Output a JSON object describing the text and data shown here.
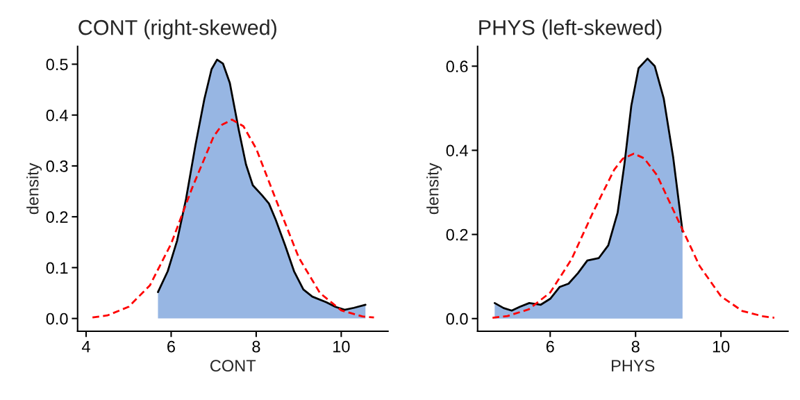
{
  "chart_data": [
    {
      "type": "area",
      "title": "CONT (right-skewed)",
      "xlabel": "CONT",
      "ylabel": "density",
      "grid": false,
      "legend": false,
      "xlim": [
        3.8,
        11.1
      ],
      "ylim": [
        -0.025,
        0.535
      ],
      "xticks": [
        4,
        6,
        8,
        10
      ],
      "yticks": [
        {
          "value": 0,
          "label": "0.0"
        },
        {
          "value": 0.1,
          "label": "0.1"
        },
        {
          "value": 0.2,
          "label": "0.2"
        },
        {
          "value": 0.3,
          "label": "0.3"
        },
        {
          "value": 0.4,
          "label": "0.4"
        },
        {
          "value": 0.5,
          "label": "0.5"
        }
      ],
      "series": [
        {
          "type": "area",
          "color": "#97b6e3",
          "x": [
            5.69,
            5.92,
            6.14,
            6.35,
            6.57,
            6.78,
            6.95,
            7.08,
            7.22,
            7.38,
            7.59,
            7.76,
            7.92,
            8.14,
            8.3,
            8.46,
            8.68,
            8.89,
            9.11,
            9.32,
            9.65,
            9.86,
            10.08,
            10.3,
            10.57
          ],
          "values": [
            0.052,
            0.093,
            0.153,
            0.235,
            0.34,
            0.431,
            0.49,
            0.509,
            0.501,
            0.463,
            0.371,
            0.303,
            0.262,
            0.242,
            0.226,
            0.194,
            0.144,
            0.093,
            0.057,
            0.043,
            0.032,
            0.023,
            0.017,
            0.021,
            0.027
          ]
        },
        {
          "type": "line",
          "color": "#ff0000",
          "line_style": "dashed",
          "x": [
            4.15,
            4.5,
            5.0,
            5.5,
            6.0,
            6.5,
            7.0,
            7.2,
            7.43,
            7.7,
            8.0,
            8.5,
            9.0,
            9.5,
            10.0,
            10.5,
            10.77
          ],
          "values": [
            0.002,
            0.006,
            0.023,
            0.065,
            0.147,
            0.258,
            0.358,
            0.381,
            0.391,
            0.378,
            0.334,
            0.226,
            0.12,
            0.05,
            0.016,
            0.004,
            0.002
          ]
        }
      ]
    },
    {
      "type": "area",
      "title": "PHYS (left-skewed)",
      "xlabel": "PHYS",
      "ylabel": "density",
      "grid": false,
      "legend": false,
      "xlim": [
        4.3,
        11.57
      ],
      "ylim": [
        -0.03,
        0.647
      ],
      "xticks": [
        6,
        8,
        10
      ],
      "yticks": [
        {
          "value": 0,
          "label": "0.0"
        },
        {
          "value": 0.2,
          "label": "0.2"
        },
        {
          "value": 0.4,
          "label": "0.4"
        },
        {
          "value": 0.6,
          "label": "0.6"
        }
      ],
      "series": [
        {
          "type": "area",
          "color": "#97b6e3",
          "x": [
            4.7,
            4.91,
            5.1,
            5.29,
            5.51,
            5.78,
            6.0,
            6.22,
            6.43,
            6.65,
            6.87,
            7.14,
            7.36,
            7.58,
            7.74,
            7.9,
            8.07,
            8.28,
            8.45,
            8.66,
            8.88,
            9.1
          ],
          "values": [
            0.037,
            0.025,
            0.019,
            0.028,
            0.037,
            0.033,
            0.047,
            0.075,
            0.083,
            0.108,
            0.138,
            0.144,
            0.174,
            0.252,
            0.368,
            0.506,
            0.595,
            0.618,
            0.6,
            0.523,
            0.384,
            0.207
          ]
        },
        {
          "type": "line",
          "color": "#ff0000",
          "line_style": "dashed",
          "x": [
            4.65,
            5.0,
            5.5,
            6.0,
            6.5,
            7.0,
            7.5,
            7.7,
            7.96,
            8.2,
            8.5,
            9.0,
            9.5,
            10.0,
            10.5,
            11.0,
            11.25
          ],
          "values": [
            0.002,
            0.006,
            0.022,
            0.062,
            0.141,
            0.252,
            0.354,
            0.38,
            0.392,
            0.381,
            0.341,
            0.233,
            0.125,
            0.053,
            0.018,
            0.005,
            0.002
          ]
        }
      ]
    }
  ]
}
